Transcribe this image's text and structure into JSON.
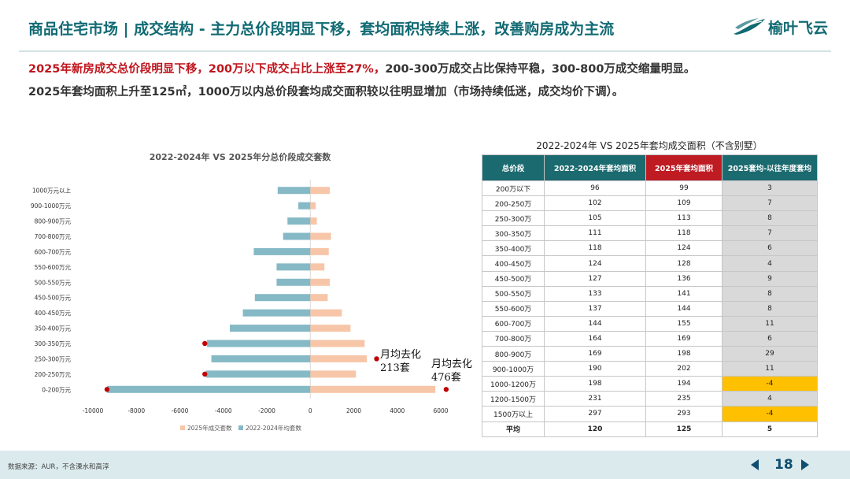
{
  "header": {
    "title": "商品住宅市场 | 成交结构 - 主力总价段明显下移，套均面积持续上涨，改善购房成为主流",
    "logo_text": "榆叶飞云"
  },
  "lead": {
    "line1_highlight": "2025年新房成交总价段明显下移，200万以下成交占比上涨至27%，",
    "line1_rest": "200-300万成交占比保持平稳，300-800万成交缩量明显。",
    "line2": "2025年套均面积上升至125㎡，1000万以内总价段套均成交面积较以往明显增加（市场持续低迷，成交均价下调）。"
  },
  "colors": {
    "series_2025": "#f7c6a8",
    "series_prev": "#86b9c6",
    "marker": "#c00000",
    "header_teal": "#1b6a6f",
    "header_red": "#be1b23",
    "warn": "#ffc000"
  },
  "chart_data": {
    "type": "bar",
    "orientation": "horizontal",
    "title": "2022-2024年 VS 2025年分总价段成交套数",
    "categories": [
      "0-200万元",
      "200-250万元",
      "250-300万元",
      "300-350万元",
      "350-400万元",
      "400-450万元",
      "450-500万元",
      "500-550万元",
      "550-600万元",
      "600-700万元",
      "700-800万元",
      "800-900万元",
      "900-1000万元",
      "1000万元以上"
    ],
    "series": [
      {
        "name": "2025年成交套数",
        "values": [
          5750,
          2100,
          2600,
          2500,
          1850,
          1450,
          800,
          900,
          650,
          850,
          950,
          300,
          250,
          900
        ]
      },
      {
        "name": "2022-2024年均套数",
        "values": [
          -9350,
          -4800,
          -4550,
          -4750,
          -3700,
          -3100,
          -2550,
          -1550,
          -1550,
          -2600,
          -1250,
          -1050,
          -550,
          -1500
        ]
      }
    ],
    "xlim": [
      -10000,
      6000
    ],
    "xticks": [
      -10000,
      -8000,
      -6000,
      -4000,
      -2000,
      0,
      2000,
      4000,
      6000
    ],
    "markers": [
      {
        "category": "0-200万元",
        "x": -9350
      },
      {
        "category": "0-200万元",
        "x": 6250
      },
      {
        "category": "200-250万元",
        "x": -4850
      },
      {
        "category": "300-350万元",
        "x": -4850
      },
      {
        "category": "250-300万元",
        "x": 3050
      }
    ],
    "annotations": [
      {
        "line1": "月均去化",
        "line2": "213套"
      },
      {
        "line1": "月均去化",
        "line2": "476套"
      }
    ],
    "legend_position": "bottom"
  },
  "table": {
    "title": "2022-2024年 VS 2025年套均成交面积（不含别墅）",
    "headers": [
      "总价段",
      "2022-2024年套均面积",
      "2025年套均面积",
      "2025套均-以往年度套均"
    ],
    "rows": [
      [
        "200万以下",
        "96",
        "99",
        "3"
      ],
      [
        "200-250万",
        "102",
        "109",
        "7"
      ],
      [
        "250-300万",
        "105",
        "113",
        "8"
      ],
      [
        "300-350万",
        "111",
        "118",
        "7"
      ],
      [
        "350-400万",
        "118",
        "124",
        "6"
      ],
      [
        "400-450万",
        "124",
        "128",
        "4"
      ],
      [
        "450-500万",
        "127",
        "136",
        "9"
      ],
      [
        "500-550万",
        "133",
        "141",
        "8"
      ],
      [
        "550-600万",
        "137",
        "144",
        "8"
      ],
      [
        "600-700万",
        "144",
        "155",
        "11"
      ],
      [
        "700-800万",
        "164",
        "169",
        "6"
      ],
      [
        "800-900万",
        "169",
        "198",
        "29"
      ],
      [
        "900-1000万",
        "190",
        "202",
        "11"
      ],
      [
        "1000-1200万",
        "198",
        "194",
        "-4"
      ],
      [
        "1200-1500万",
        "231",
        "235",
        "4"
      ],
      [
        "1500万以上",
        "297",
        "293",
        "-4"
      ]
    ],
    "average": [
      "平均",
      "120",
      "125",
      "5"
    ]
  },
  "footer": {
    "source": "数据来源：AUR，不含溧水和高淳",
    "page": "18"
  }
}
